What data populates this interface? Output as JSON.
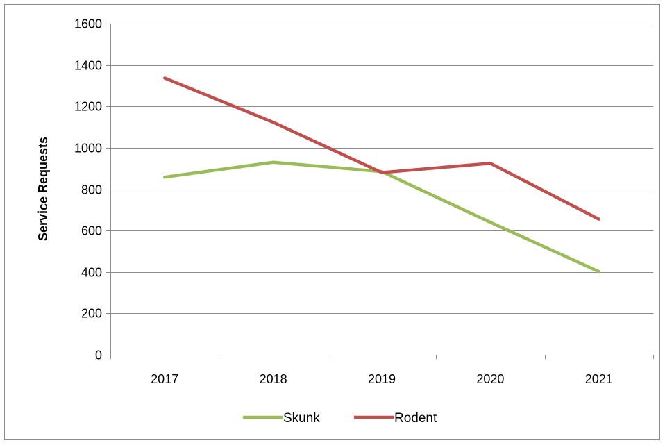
{
  "chart_data": {
    "type": "line",
    "title": "",
    "xlabel": "",
    "ylabel": "Service Requests",
    "categories": [
      "2017",
      "2018",
      "2019",
      "2020",
      "2021"
    ],
    "ylim": [
      0,
      1600
    ],
    "yticks": [
      0,
      200,
      400,
      600,
      800,
      1000,
      1200,
      1400,
      1600
    ],
    "grid": "horizontal",
    "legend_position": "bottom",
    "series": [
      {
        "name": "Skunk",
        "color": "#9bbb59",
        "values": [
          858,
          930,
          885,
          640,
          402
        ]
      },
      {
        "name": "Rodent",
        "color": "#c0504d",
        "values": [
          1337,
          1123,
          880,
          925,
          655
        ]
      }
    ]
  }
}
